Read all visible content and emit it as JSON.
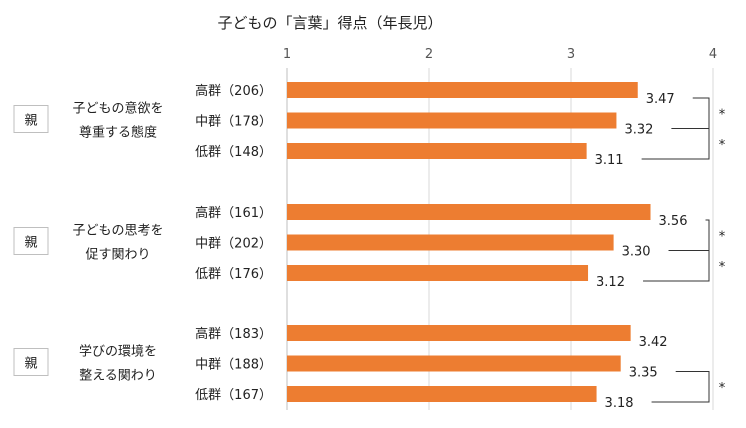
{
  "chart_data": {
    "type": "bar",
    "orientation": "horizontal",
    "title": "子どもの「言葉」得点（年長児）",
    "xlim": [
      1,
      4
    ],
    "xticks": [
      "1",
      "2",
      "3",
      "4"
    ],
    "grid": true,
    "color": "#ED7D31",
    "groups": [
      {
        "tag": "親",
        "label_lines": [
          "子どもの意欲を",
          "尊重する態度"
        ],
        "bars": [
          {
            "label": "高群（206）",
            "value": 3.47,
            "value_label": "3.47"
          },
          {
            "label": "中群（178）",
            "value": 3.32,
            "value_label": "3.32"
          },
          {
            "label": "低群（148）",
            "value": 3.11,
            "value_label": "3.11"
          }
        ],
        "significance": [
          {
            "from": 0,
            "to": 1,
            "mark": "*"
          },
          {
            "from": 1,
            "to": 2,
            "mark": "*"
          }
        ]
      },
      {
        "tag": "親",
        "label_lines": [
          "子どもの思考を",
          "促す関わり"
        ],
        "bars": [
          {
            "label": "高群（161）",
            "value": 3.56,
            "value_label": "3.56"
          },
          {
            "label": "中群（202）",
            "value": 3.3,
            "value_label": "3.30"
          },
          {
            "label": "低群（176）",
            "value": 3.12,
            "value_label": "3.12"
          }
        ],
        "significance": [
          {
            "from": 0,
            "to": 1,
            "mark": "*"
          },
          {
            "from": 1,
            "to": 2,
            "mark": "*"
          }
        ]
      },
      {
        "tag": "親",
        "label_lines": [
          "学びの環境を",
          "整える関わり"
        ],
        "bars": [
          {
            "label": "高群（183）",
            "value": 3.42,
            "value_label": "3.42"
          },
          {
            "label": "中群（188）",
            "value": 3.35,
            "value_label": "3.35"
          },
          {
            "label": "低群（167）",
            "value": 3.18,
            "value_label": "3.18"
          }
        ],
        "significance": [
          {
            "from": 1,
            "to": 2,
            "mark": "*"
          }
        ]
      }
    ]
  }
}
